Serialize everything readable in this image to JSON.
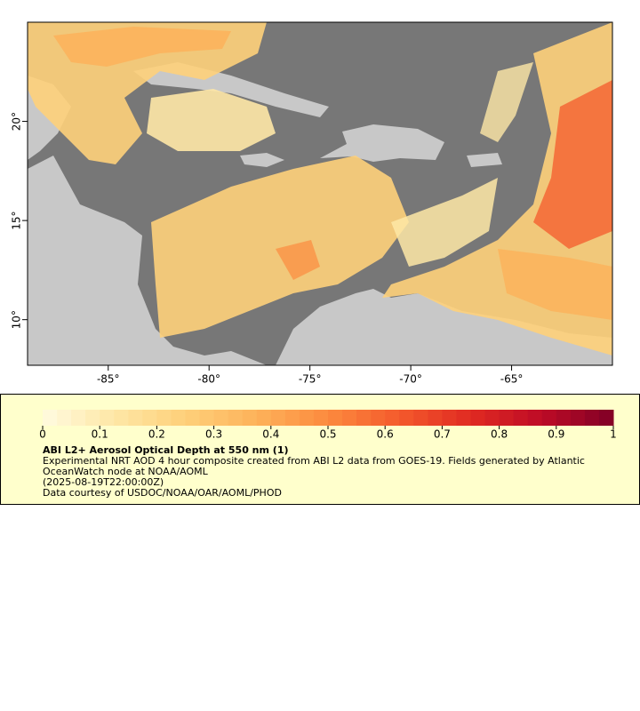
{
  "chart_data": {
    "type": "map",
    "xlim": [
      -89,
      -60
    ],
    "ylim": [
      7.7,
      25
    ],
    "xticks": [
      {
        "value": -85,
        "label": "-85°"
      },
      {
        "value": -80,
        "label": "-80°"
      },
      {
        "value": -75,
        "label": "-75°"
      },
      {
        "value": -70,
        "label": "-70°"
      },
      {
        "value": -65,
        "label": "-65°"
      }
    ],
    "yticks": [
      {
        "value": 10,
        "label": "10°"
      },
      {
        "value": 15,
        "label": "15°"
      },
      {
        "value": 20,
        "label": "20°"
      }
    ],
    "colorbar": {
      "lim": [
        0,
        1
      ],
      "ticks": [
        0,
        0.1,
        0.2,
        0.3,
        0.4,
        0.5,
        0.6,
        0.7,
        0.8,
        0.9,
        1
      ],
      "colormap": [
        "#fffbe0",
        "#fee7a6",
        "#fed07a",
        "#fdb25a",
        "#fc8a3e",
        "#f45a2c",
        "#e02a22",
        "#bd0b26",
        "#800026"
      ]
    },
    "title": "ABI L2+ Aerosol Optical Depth at 550 nm (1)",
    "description": "Experimental NRT AOD 4 hour composite created from ABI L2 data from GOES-19. Fields generated by Atlantic OceanWatch node at NOAA/AOML",
    "time": "(2025-08-19T22:00:00Z)",
    "credit": "Data courtesy of USDOC/NOAA/OAR/AOML/PHOD"
  }
}
